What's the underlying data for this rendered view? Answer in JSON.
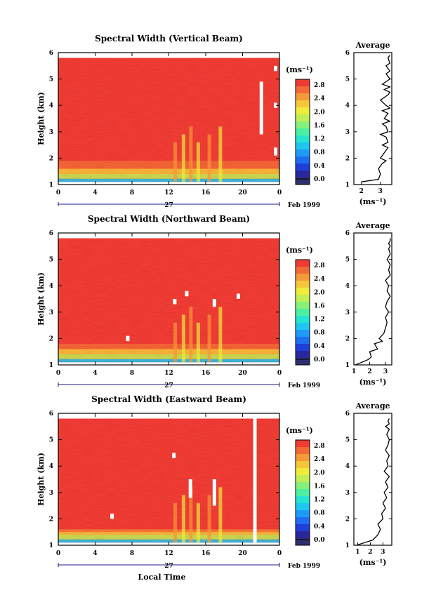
{
  "figure": {
    "date_label": "Feb 1999",
    "day_label": "27",
    "xlabel": "Local Time",
    "colorbar_unit": "(ms⁻¹)",
    "average_title": "Average",
    "average_xlabel": "(ms⁻¹)"
  },
  "chart_data": [
    {
      "type": "heatmap",
      "title": "Spectral Width (Vertical Beam)",
      "ylabel": "Height (km)",
      "xlabel": "",
      "x_ticks": [
        "0",
        "4",
        "8",
        "12",
        "16",
        "20",
        "0"
      ],
      "xlim": [
        0,
        24
      ],
      "y_ticks": [
        "1",
        "2",
        "3",
        "4",
        "5",
        "6"
      ],
      "ylim": [
        1,
        6
      ],
      "colorbar": {
        "min": 0.0,
        "max": 2.8,
        "ticks": [
          "0.0",
          "0.4",
          "0.8",
          "1.2",
          "1.6",
          "2.0",
          "2.4",
          "2.8"
        ]
      },
      "dominant_value": 2.8,
      "low_width_layer_km": [
        1.1,
        1.9
      ],
      "missing_data": [
        {
          "time_h": 22.0,
          "height_km": [
            2.9,
            4.9
          ]
        },
        {
          "time_h": 24.0,
          "height_km": [
            5.3,
            5.5
          ]
        },
        {
          "time_h": 24.0,
          "height_km": [
            3.9,
            4.1
          ]
        },
        {
          "time_h": 24.0,
          "height_km": [
            2.1,
            2.4
          ]
        }
      ]
    },
    {
      "type": "heatmap",
      "title": "Spectral Width (Northward Beam)",
      "ylabel": "Height (km)",
      "xlabel": "",
      "x_ticks": [
        "0",
        "4",
        "8",
        "12",
        "16",
        "20",
        "0"
      ],
      "xlim": [
        0,
        24
      ],
      "y_ticks": [
        "1",
        "2",
        "3",
        "4",
        "5",
        "6"
      ],
      "ylim": [
        1,
        6
      ],
      "colorbar": {
        "min": 0.0,
        "max": 2.8,
        "ticks": [
          "0.0",
          "0.4",
          "0.8",
          "1.2",
          "1.6",
          "2.0",
          "2.4",
          "2.8"
        ]
      },
      "dominant_value": 2.8,
      "low_width_layer_km": [
        1.1,
        1.8
      ],
      "missing_data": [
        {
          "time_h": 12.6,
          "height_km": [
            3.3,
            3.5
          ]
        },
        {
          "time_h": 13.9,
          "height_km": [
            3.6,
            3.8
          ]
        },
        {
          "time_h": 16.9,
          "height_km": [
            3.2,
            3.5
          ]
        },
        {
          "time_h": 19.5,
          "height_km": [
            3.5,
            3.7
          ]
        },
        {
          "time_h": 7.5,
          "height_km": [
            1.9,
            2.1
          ]
        }
      ]
    },
    {
      "type": "heatmap",
      "title": "Spectral Width (Eastward Beam)",
      "ylabel": "Height (km)",
      "xlabel": "Local Time",
      "x_ticks": [
        "0",
        "4",
        "8",
        "12",
        "16",
        "20",
        "0"
      ],
      "xlim": [
        0,
        24
      ],
      "y_ticks": [
        "1",
        "2",
        "3",
        "4",
        "5",
        "6"
      ],
      "ylim": [
        1,
        6
      ],
      "colorbar": {
        "min": 0.0,
        "max": 2.8,
        "ticks": [
          "0.0",
          "0.4",
          "0.8",
          "1.2",
          "1.6",
          "2.0",
          "2.4",
          "2.8"
        ]
      },
      "dominant_value": 2.8,
      "low_width_layer_km": [
        1.1,
        1.6
      ],
      "missing_data": [
        {
          "time_h": 12.5,
          "height_km": [
            4.3,
            4.5
          ]
        },
        {
          "time_h": 14.3,
          "height_km": [
            2.8,
            3.5
          ]
        },
        {
          "time_h": 16.9,
          "height_km": [
            2.5,
            3.5
          ]
        },
        {
          "time_h": 21.3,
          "height_km": [
            1.1,
            5.8
          ]
        },
        {
          "time_h": 5.8,
          "height_km": [
            2.0,
            2.2
          ]
        }
      ]
    },
    {
      "type": "line",
      "title": "Average",
      "xlabel": "(ms⁻¹)",
      "x_ticks": [
        "2",
        "3"
      ],
      "xlim": [
        1.6,
        3.6
      ],
      "y_ticks": [
        "1",
        "2",
        "3",
        "4",
        "5",
        "6"
      ],
      "ylim": [
        1,
        6
      ],
      "series": [
        {
          "x": [
            2.0,
            2.9,
            3.0,
            2.9,
            3.1,
            3.3,
            3.0,
            3.2,
            3.4,
            3.1,
            3.4,
            3.3,
            3.0,
            3.4,
            3.3,
            3.1,
            3.5,
            3.2,
            3.4,
            3.1,
            3.5,
            3.3,
            3.0,
            3.4,
            3.5,
            3.2,
            3.5,
            3.1,
            3.5,
            3.3,
            3.5,
            3.4,
            3.3,
            3.5,
            3.4,
            3.5
          ],
          "y": [
            1.1,
            1.2,
            1.4,
            1.6,
            1.8,
            1.9,
            2.0,
            2.2,
            2.4,
            2.5,
            2.6,
            2.8,
            2.9,
            3.0,
            3.2,
            3.3,
            3.4,
            3.5,
            3.7,
            3.8,
            3.9,
            4.0,
            4.2,
            4.4,
            4.5,
            4.6,
            4.7,
            4.8,
            5.0,
            5.2,
            5.3,
            5.4,
            5.5,
            5.6,
            5.8,
            5.9
          ]
        }
      ]
    },
    {
      "type": "line",
      "title": "Average",
      "xlabel": "(ms⁻¹)",
      "x_ticks": [
        "1",
        "2",
        "3"
      ],
      "xlim": [
        1,
        3.4
      ],
      "y_ticks": [
        "1",
        "2",
        "3",
        "4",
        "5",
        "6"
      ],
      "ylim": [
        1,
        6
      ],
      "series": [
        {
          "x": [
            1.1,
            1.9,
            2.1,
            2.0,
            2.5,
            2.3,
            2.8,
            2.6,
            2.9,
            3.0,
            3.1,
            3.0,
            3.2,
            3.0,
            3.1,
            3.3,
            3.1,
            3.2,
            3.0,
            3.3,
            3.2,
            3.3,
            3.1,
            3.3,
            3.2,
            3.3,
            3.2,
            3.3,
            3.3
          ],
          "y": [
            1.0,
            1.2,
            1.3,
            1.5,
            1.6,
            1.8,
            1.9,
            2.0,
            2.2,
            2.4,
            2.6,
            2.8,
            3.0,
            3.2,
            3.4,
            3.6,
            3.8,
            4.0,
            4.2,
            4.4,
            4.6,
            4.8,
            5.0,
            5.2,
            5.4,
            5.5,
            5.6,
            5.7,
            5.8
          ]
        }
      ]
    },
    {
      "type": "line",
      "title": "Average",
      "xlabel": "(ms⁻¹)",
      "x_ticks": [
        "1",
        "2",
        "3"
      ],
      "xlim": [
        0.7,
        3.7
      ],
      "y_ticks": [
        "1",
        "2",
        "3",
        "4",
        "5",
        "6"
      ],
      "ylim": [
        1,
        6
      ],
      "series": [
        {
          "x": [
            0.9,
            2.2,
            2.6,
            2.8,
            2.6,
            3.0,
            2.9,
            3.2,
            3.0,
            3.3,
            3.1,
            3.4,
            3.2,
            3.5,
            3.1,
            3.4,
            3.3,
            3.5,
            3.2,
            3.4,
            3.5,
            3.3,
            3.5,
            3.2,
            3.5,
            3.4,
            3.5
          ],
          "y": [
            1.0,
            1.2,
            1.4,
            1.6,
            1.8,
            2.0,
            2.2,
            2.4,
            2.6,
            2.8,
            3.0,
            3.2,
            3.4,
            3.6,
            3.8,
            4.0,
            4.2,
            4.4,
            4.6,
            4.8,
            5.0,
            5.2,
            5.4,
            5.5,
            5.6,
            5.7,
            5.8
          ]
        }
      ]
    }
  ]
}
